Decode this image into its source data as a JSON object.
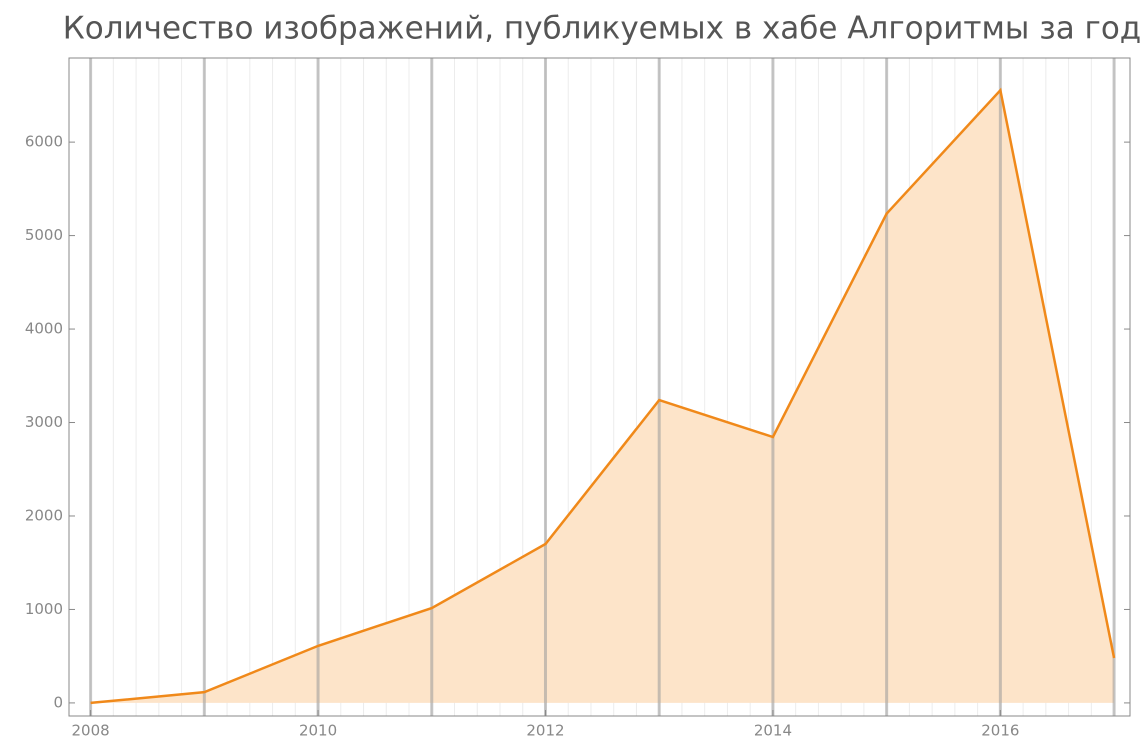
{
  "chart_data": {
    "type": "area",
    "title": "Количество изображений, публикуемых в хабе Алгоритмы за год",
    "x": [
      2008,
      2009,
      2010,
      2011,
      2012,
      2013,
      2014,
      2015,
      2016,
      2017
    ],
    "series": [
      {
        "color": "#f0891a",
        "fill": "#fde4c9",
        "values": [
          0,
          115,
          610,
          1015,
          1700,
          3240,
          2845,
          5235,
          6555,
          480
        ]
      }
    ],
    "xlim": [
      2007.81,
      2017.14
    ],
    "xticks": [
      2008,
      2010,
      2012,
      2014,
      2016
    ],
    "ylim": [
      -140,
      6900
    ],
    "yticks": [
      0,
      1000,
      2000,
      3000,
      4000,
      5000,
      6000
    ],
    "grid": true
  }
}
